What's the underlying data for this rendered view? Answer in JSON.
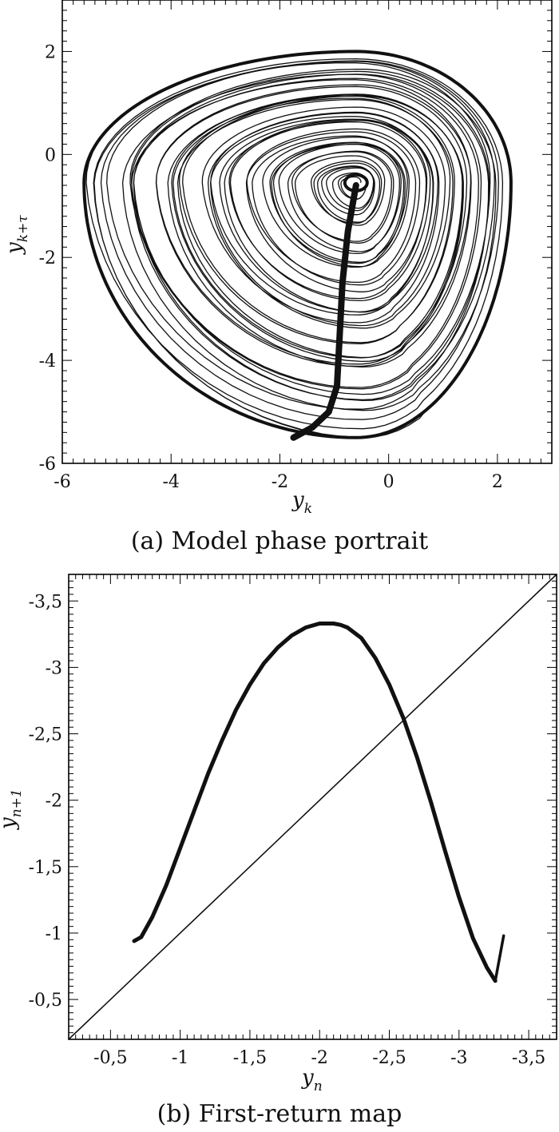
{
  "chart_data": [
    {
      "type": "line",
      "caption": "(a) Model phase portrait",
      "xlabel_base": "y",
      "xlabel_sub": "k",
      "ylabel_base": "y",
      "ylabel_sub": "k+τ",
      "xlim": [
        -6,
        3
      ],
      "ylim": [
        -6,
        3
      ],
      "xticks": [
        -6,
        -4,
        -2,
        0,
        2
      ],
      "yticks": [
        -6,
        -4,
        -2,
        0,
        2
      ],
      "xticklabels": [
        "-6",
        "-4",
        "-2",
        "0",
        "2"
      ],
      "yticklabels": [
        "-6",
        "-4",
        "-2",
        "0",
        "2"
      ],
      "attractor": {
        "center": [
          -0.6,
          -0.55
        ],
        "extent_x": [
          -5.6,
          2.25
        ],
        "extent_y": [
          -5.5,
          2.0
        ],
        "loops": 46
      },
      "branch": {
        "x": [
          -0.6,
          -0.75,
          -0.85,
          -0.9,
          -0.95,
          -1.1,
          -1.4,
          -1.75
        ],
        "y": [
          -0.6,
          -1.5,
          -2.5,
          -3.5,
          -4.5,
          -5.0,
          -5.3,
          -5.5
        ]
      }
    },
    {
      "type": "line",
      "caption": "(b) First-return map",
      "xlabel_base": "y",
      "xlabel_sub": "n",
      "ylabel_base": "y",
      "ylabel_sub": "n+1",
      "xlim": [
        -0.2,
        -3.7
      ],
      "ylim": [
        -0.2,
        -3.7
      ],
      "xticks": [
        -0.5,
        -1,
        -1.5,
        -2,
        -2.5,
        -3,
        -3.5
      ],
      "yticks": [
        -0.5,
        -1,
        -1.5,
        -2,
        -2.5,
        -3,
        -3.5
      ],
      "xticklabels": [
        "-0,5",
        "-1",
        "-1,5",
        "-2",
        "-2,5",
        "-3",
        "-3,5"
      ],
      "yticklabels": [
        "-0,5",
        "-1",
        "-1,5",
        "-2",
        "-2,5",
        "-3",
        "-3,5"
      ],
      "series": [
        {
          "x": [
            -0.67,
            -0.72,
            -0.8,
            -0.9,
            -1.0,
            -1.1,
            -1.2,
            -1.3,
            -1.4,
            -1.5,
            -1.6,
            -1.7,
            -1.8,
            -1.9,
            -2.0,
            -2.1,
            -2.15,
            -2.2,
            -2.3,
            -2.4,
            -2.5,
            -2.6,
            -2.7,
            -2.8,
            -2.9,
            -3.0,
            -3.1,
            -3.2,
            -3.26
          ],
          "y": [
            -0.94,
            -0.97,
            -1.12,
            -1.36,
            -1.64,
            -1.92,
            -2.2,
            -2.45,
            -2.68,
            -2.87,
            -3.03,
            -3.15,
            -3.24,
            -3.3,
            -3.33,
            -3.33,
            -3.32,
            -3.3,
            -3.22,
            -3.07,
            -2.87,
            -2.62,
            -2.32,
            -1.98,
            -1.62,
            -1.27,
            -0.96,
            -0.74,
            -0.64
          ]
        },
        {
          "x": [
            -3.26,
            -3.32
          ],
          "y": [
            -0.64,
            -0.98
          ]
        },
        {
          "x": [
            -0.2,
            -3.7
          ],
          "y": [
            -0.2,
            -3.7
          ]
        }
      ]
    }
  ]
}
